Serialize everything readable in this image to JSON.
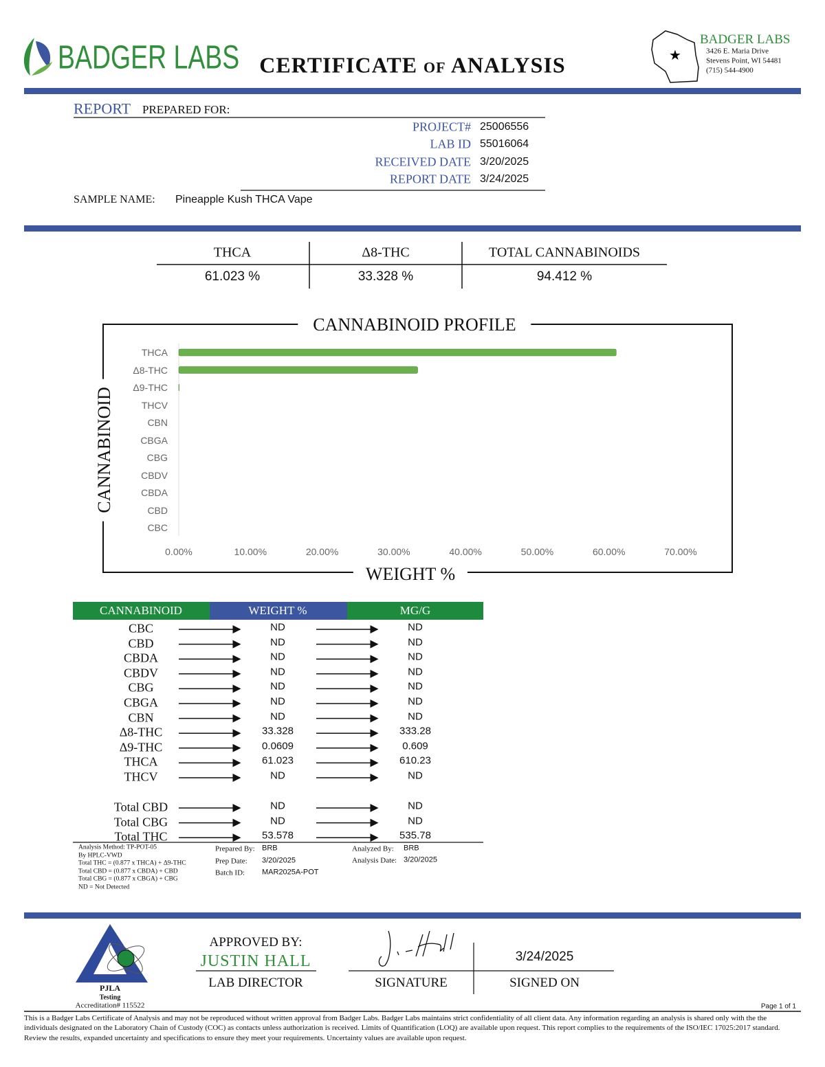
{
  "header": {
    "brand": "BADGER LABS",
    "title": "CERTIFICATE of ANALYSIS",
    "lab_name": "BADGER LABS",
    "address": [
      "3426 E. Maria Drive",
      "Stevens Point, WI 54481",
      "(715) 544-4900"
    ]
  },
  "report": {
    "label": "REPORT",
    "prepared_for": "PREPARED FOR:",
    "fields": [
      {
        "label": "PROJECT#",
        "value": "25006556"
      },
      {
        "label": "LAB ID",
        "value": "55016064"
      },
      {
        "label": "RECEIVED DATE",
        "value": "3/20/2025"
      },
      {
        "label": "REPORT DATE",
        "value": "3/24/2025"
      }
    ],
    "sample_label": "SAMPLE NAME:",
    "sample_name": "Pineapple Kush THCA Vape"
  },
  "summary": [
    {
      "label": "THCA",
      "value": "61.023 %"
    },
    {
      "label": "Δ8-THC",
      "value": "33.328 %"
    },
    {
      "label": "TOTAL CANNABINOIDS",
      "value": "94.412 %"
    }
  ],
  "chart_data": {
    "type": "bar",
    "orientation": "horizontal",
    "title": "CANNABINOID PROFILE",
    "xlabel": "WEIGHT %",
    "ylabel": "CANNABINOID",
    "color": "#6ab04c",
    "categories": [
      "THCA",
      "Δ8-THC",
      "Δ9-THC",
      "THCV",
      "CBN",
      "CBGA",
      "CBG",
      "CBDV",
      "CBDA",
      "CBD",
      "CBC"
    ],
    "values": [
      61.023,
      33.328,
      0.0609,
      0,
      0,
      0,
      0,
      0,
      0,
      0,
      0
    ],
    "xlim": [
      0,
      70
    ],
    "xticks": [
      {
        "value": 0,
        "label": "0.00%"
      },
      {
        "value": 10,
        "label": "10.00%"
      },
      {
        "value": 20,
        "label": "20.00%"
      },
      {
        "value": 30,
        "label": "30.00%"
      },
      {
        "value": 40,
        "label": "40.00%"
      },
      {
        "value": 50,
        "label": "50.00%"
      },
      {
        "value": 60,
        "label": "60.00%"
      },
      {
        "value": 70,
        "label": "70.00%"
      }
    ]
  },
  "table": {
    "headers": [
      "CANNABINOID",
      "WEIGHT %",
      "MG/G"
    ],
    "rows": [
      [
        "CBC",
        "ND",
        "ND"
      ],
      [
        "CBD",
        "ND",
        "ND"
      ],
      [
        "CBDA",
        "ND",
        "ND"
      ],
      [
        "CBDV",
        "ND",
        "ND"
      ],
      [
        "CBG",
        "ND",
        "ND"
      ],
      [
        "CBGA",
        "ND",
        "ND"
      ],
      [
        "CBN",
        "ND",
        "ND"
      ],
      [
        "Δ8-THC",
        "33.328",
        "333.28"
      ],
      [
        "Δ9-THC",
        "0.0609",
        "0.609"
      ],
      [
        "THCA",
        "61.023",
        "610.23"
      ],
      [
        "THCV",
        "ND",
        "ND"
      ]
    ],
    "totals": [
      [
        "Total CBD",
        "ND",
        "ND"
      ],
      [
        "Total CBG",
        "ND",
        "ND"
      ],
      [
        "Total THC",
        "53.578",
        "535.78"
      ]
    ]
  },
  "notes": [
    "Analysis Method: TP-POT-05",
    "By HPLC-VWD",
    "Total THC = (0.877 x  THCA) + Δ9-THC",
    "Total CBD = (0.877 x  CBDA) + CBD",
    "Total CBG = (0.877 x  CBGA) + CBG",
    "ND = Not Detected"
  ],
  "prep": [
    {
      "label": "Prepared By:",
      "value": "BRB"
    },
    {
      "label": "Prep Date:",
      "value": "3/20/2025"
    },
    {
      "label": "Batch ID:",
      "value": "MAR2025A-POT"
    }
  ],
  "analysis": [
    {
      "label": "Analyzed By:",
      "value": "BRB"
    },
    {
      "label": "Analysis Date:",
      "value": "3/20/2025"
    }
  ],
  "approval": {
    "approved_by": "APPROVED BY:",
    "name": "JUSTIN HALL",
    "role": "LAB DIRECTOR",
    "signature_label": "SIGNATURE",
    "date": "3/24/2025",
    "signed_on": "SIGNED ON"
  },
  "accreditation": {
    "name": "PJLA",
    "type": "Testing",
    "number": "Accreditation# 115522"
  },
  "page": "Page 1 of 1",
  "disclaimer": "This is a Badger Labs Certificate of Analysis and may not be reproduced without written approval from Badger Labs. Badger Labs maintains strict confidentiality of all client data. Any information regarding an analysis is shared only with the the individuals designated on the Laboratory Chain of Custody (COC) as contacts unless authorization is received. Limits of Quantification (LOQ) are available upon request. This report complies to the requirements of the ISO/IEC 17025:2017 standard. Review the results, expanded uncertainty and specifications to ensure they meet your requirements. Uncertainty values are available upon request."
}
